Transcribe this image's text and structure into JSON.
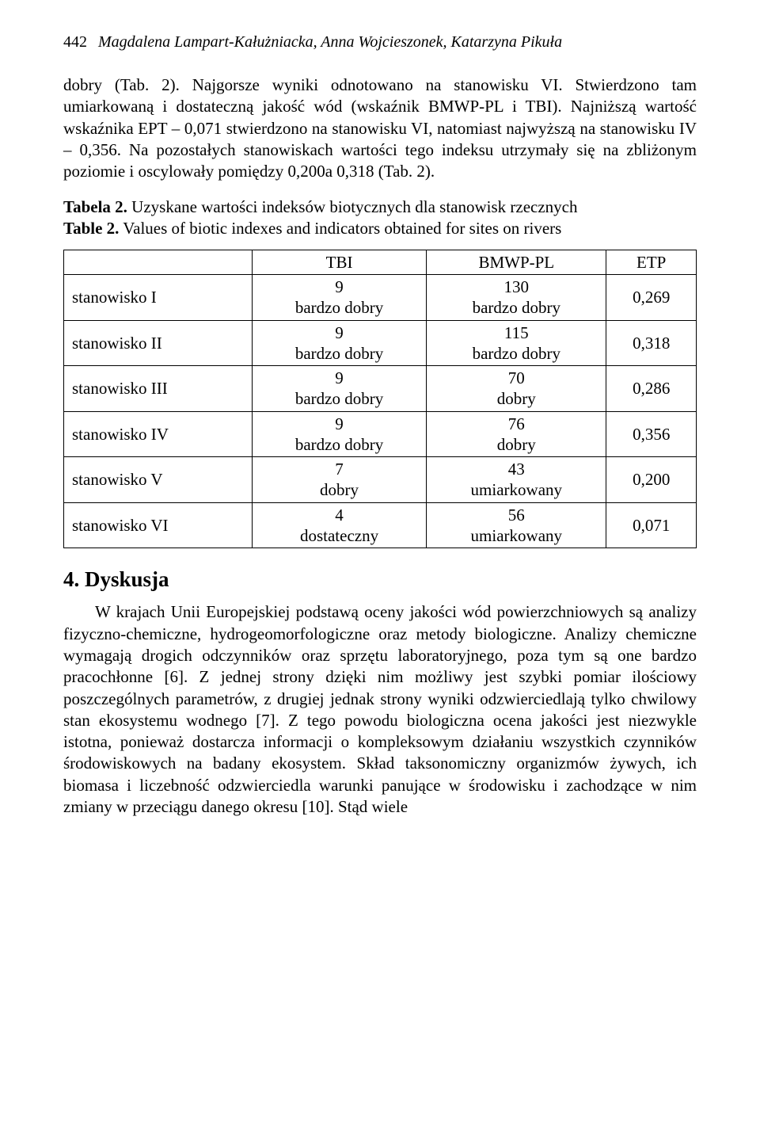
{
  "header": {
    "page_number": "442",
    "authors": "Magdalena Lampart-Kałużniacka, Anna Wojcieszonek, Katarzyna Pikuła"
  },
  "para1": "dobry (Tab. 2). Najgorsze wyniki odnotowano na stanowisku VI. Stwierdzono tam umiarkowaną i dostateczną jakość wód (wskaźnik BMWP-PL i TBI). Najniższą wartość wskaźnika EPT – 0,071 stwierdzono na stanowisku VI, natomiast najwyższą na stanowisku IV – 0,356. Na pozostałych stanowiskach wartości tego indeksu utrzymały się na zbliżonym poziomie i oscylowały pomiędzy 0,200a 0,318 (Tab. 2).",
  "table_caption": {
    "line1_bold": "Tabela 2.",
    "line1_rest": " Uzyskane wartości indeksów biotycznych dla stanowisk rzecznych",
    "line2_bold": "Table 2.",
    "line2_rest": " Values of biotic indexes and indicators obtained for sites on rivers"
  },
  "table": {
    "columns": [
      "",
      "TBI",
      "BMWP-PL",
      "ETP"
    ],
    "rows": [
      {
        "label": "stanowisko I",
        "tbi_val": "9",
        "tbi_txt": "bardzo dobry",
        "bmwp_val": "130",
        "bmwp_txt": "bardzo dobry",
        "etp": "0,269"
      },
      {
        "label": "stanowisko II",
        "tbi_val": "9",
        "tbi_txt": "bardzo dobry",
        "bmwp_val": "115",
        "bmwp_txt": "bardzo dobry",
        "etp": "0,318"
      },
      {
        "label": "stanowisko III",
        "tbi_val": "9",
        "tbi_txt": "bardzo dobry",
        "bmwp_val": "70",
        "bmwp_txt": "dobry",
        "etp": "0,286"
      },
      {
        "label": "stanowisko IV",
        "tbi_val": "9",
        "tbi_txt": "bardzo dobry",
        "bmwp_val": "76",
        "bmwp_txt": "dobry",
        "etp": "0,356"
      },
      {
        "label": "stanowisko V",
        "tbi_val": "7",
        "tbi_txt": "dobry",
        "bmwp_val": "43",
        "bmwp_txt": "umiarkowany",
        "etp": "0,200"
      },
      {
        "label": "stanowisko VI",
        "tbi_val": "4",
        "tbi_txt": "dostateczny",
        "bmwp_val": "56",
        "bmwp_txt": "umiarkowany",
        "etp": "0,071"
      }
    ]
  },
  "section_heading": "4. Dyskusja",
  "para2": "W krajach Unii Europejskiej podstawą oceny jakości wód powierzchniowych są analizy fizyczno-chemiczne, hydrogeomorfologiczne oraz metody biologiczne. Analizy chemiczne wymagają drogich odczynników oraz sprzętu laboratoryjnego, poza tym są one bardzo pracochłonne [6]. Z jednej strony dzięki nim możliwy jest szybki pomiar ilościowy poszczególnych parametrów, z drugiej jednak strony wyniki odzwierciedlają tylko chwilowy stan ekosystemu wodnego [7]. Z tego powodu biologiczna ocena jakości jest niezwykle istotna, ponieważ dostarcza informacji o kompleksowym działaniu wszystkich czynników środowiskowych na badany ekosystem. Skład taksonomiczny organizmów żywych, ich biomasa i liczebność odzwierciedla warunki panujące w środowisku i zachodzące w nim zmiany w przeciągu danego okresu [10]. Stąd wiele"
}
